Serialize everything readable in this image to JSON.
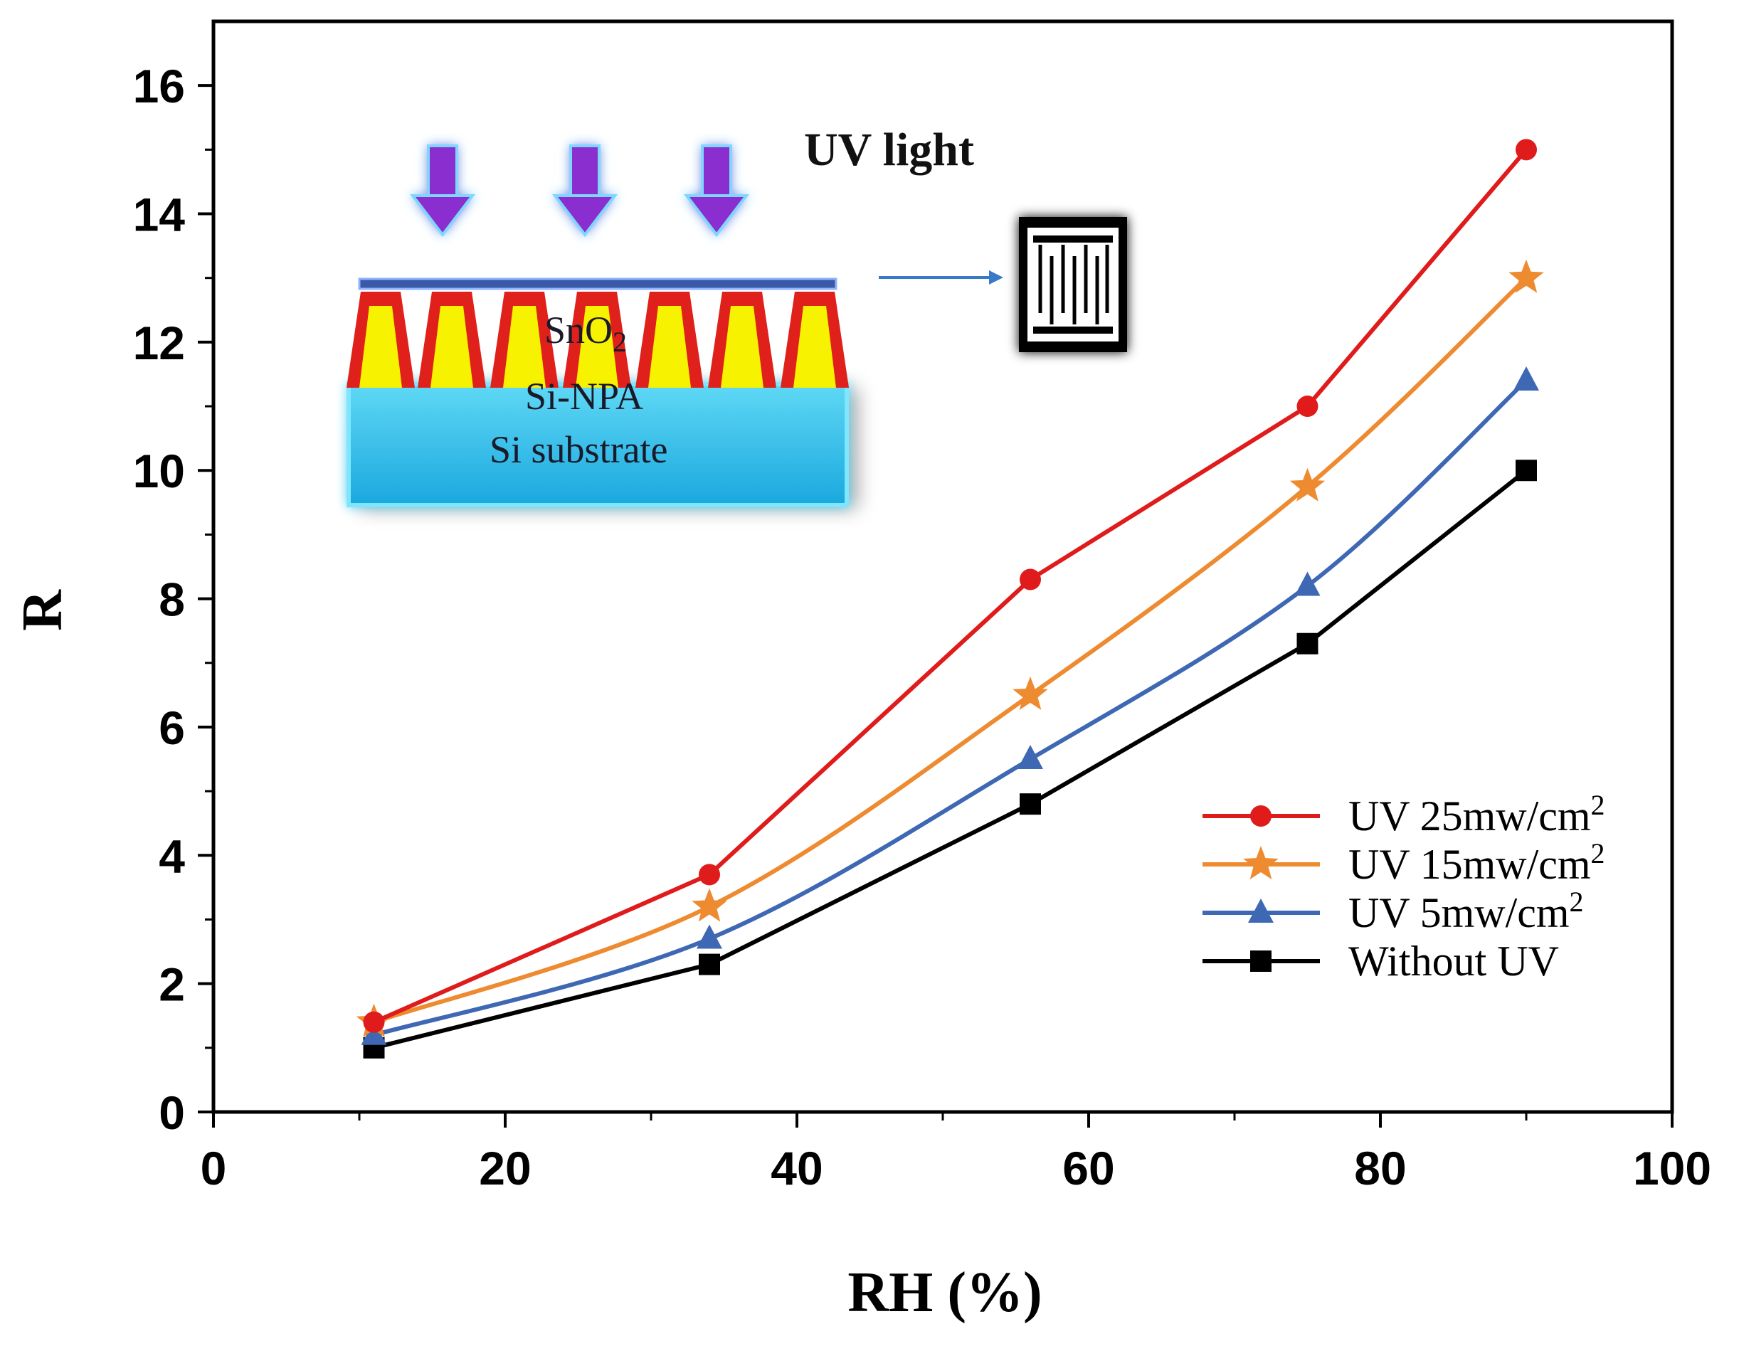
{
  "chart_data": {
    "type": "line",
    "title": "",
    "xlabel": "RH (%)",
    "ylabel": "R",
    "xlim": [
      0,
      100
    ],
    "ylim": [
      0,
      17
    ],
    "x_ticks": [
      0,
      20,
      40,
      60,
      80,
      100
    ],
    "y_ticks": [
      0,
      2,
      4,
      6,
      8,
      10,
      12,
      14,
      16
    ],
    "x_tick_labels": [
      "0",
      "20",
      "40",
      "60",
      "80",
      "100"
    ],
    "y_tick_labels": [
      "0",
      "2",
      "4",
      "6",
      "8",
      "10",
      "12",
      "14",
      "16"
    ],
    "x": [
      11,
      34,
      56,
      75,
      90
    ],
    "legend_position": "lower-right",
    "series": [
      {
        "name": "UV 25mw/cm",
        "sup": "2",
        "marker": "circle",
        "color": "#e01b1b",
        "values": [
          1.4,
          3.7,
          8.3,
          11.0,
          15.0
        ]
      },
      {
        "name": "UV 15mw/cm",
        "sup": "2",
        "marker": "star",
        "color": "#ee8a2f",
        "values": [
          1.4,
          3.2,
          6.5,
          9.75,
          13.0
        ]
      },
      {
        "name": "UV  5mw/cm",
        "sup": "2",
        "marker": "triangle",
        "color": "#3e67b4",
        "values": [
          1.2,
          2.7,
          5.5,
          8.2,
          11.4
        ]
      },
      {
        "name": "Without UV",
        "sup": "",
        "marker": "square",
        "color": "#000000",
        "values": [
          1.0,
          2.3,
          4.8,
          7.3,
          10.0
        ]
      }
    ]
  },
  "inset": {
    "uv_label": "UV light",
    "sno2_label": "SnO",
    "sno2_sub": "2",
    "sinpa_label": "Si-NPA",
    "substrate_label": "Si substrate",
    "colors": {
      "arrow": "#8a2ecf",
      "substrate": "#27b6e6",
      "film": "#3a5aa8",
      "pillar_outer": "#e0201a",
      "pillar_inner": "#f6f200"
    }
  }
}
